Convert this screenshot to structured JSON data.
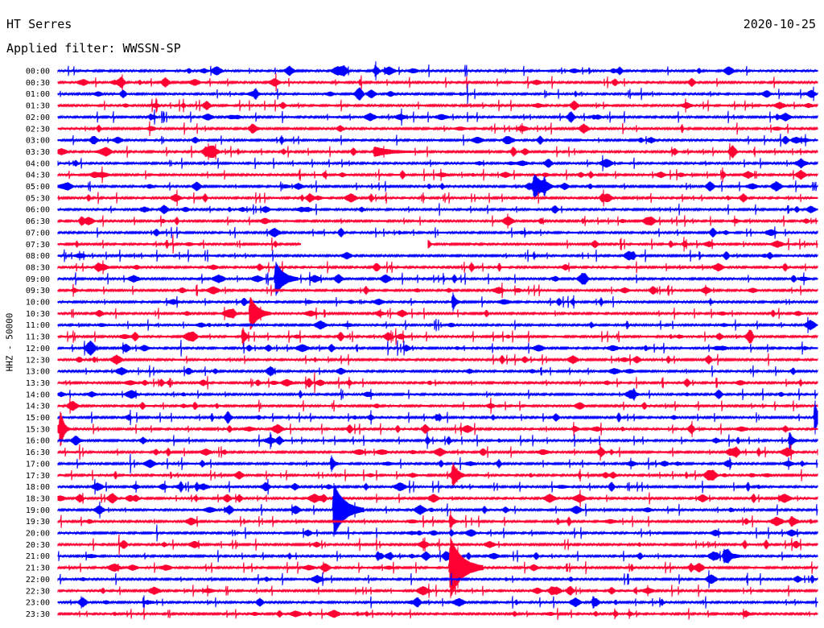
{
  "header": {
    "station": "HT Serres",
    "date": "2020-10-25",
    "filter": "Applied filter: WWSSN-SP"
  },
  "colors": {
    "even_row": "#0000ff",
    "odd_row": "#ff0033"
  },
  "chart_data": {
    "type": "line",
    "subtype": "helicorder",
    "ylabel": "HHZ - 50000",
    "row_labels": [
      "00:00",
      "00:30",
      "01:00",
      "01:30",
      "02:00",
      "02:30",
      "03:00",
      "03:30",
      "04:00",
      "04:30",
      "05:00",
      "05:30",
      "06:00",
      "06:30",
      "07:00",
      "07:30",
      "08:00",
      "08:30",
      "09:00",
      "09:30",
      "10:00",
      "10:30",
      "11:00",
      "11:30",
      "12:00",
      "12:30",
      "13:00",
      "13:30",
      "14:00",
      "14:30",
      "15:00",
      "15:30",
      "16:00",
      "16:30",
      "17:00",
      "17:30",
      "18:00",
      "18:30",
      "19:00",
      "19:30",
      "20:00",
      "20:30",
      "21:00",
      "21:30",
      "22:00",
      "22:30",
      "23:00",
      "23:30"
    ],
    "row_minutes": 30,
    "data_gaps": [
      {
        "row": "07:30",
        "start_minute": 9.6,
        "end_minute": 14.6
      }
    ],
    "events": [
      {
        "row": "03:30",
        "minute": 12.5,
        "amplitude": 0.4,
        "duration_min": 1.6
      },
      {
        "row": "05:00",
        "minute": 18.8,
        "amplitude": 0.8,
        "duration_min": 0.8
      },
      {
        "row": "09:00",
        "minute": 8.6,
        "amplitude": 1.5,
        "duration_min": 0.9
      },
      {
        "row": "10:00",
        "minute": 15.6,
        "amplitude": 0.8,
        "duration_min": 0.3
      },
      {
        "row": "10:30",
        "minute": 7.6,
        "amplitude": 1.5,
        "duration_min": 0.8
      },
      {
        "row": "11:30",
        "minute": 7.3,
        "amplitude": 0.8,
        "duration_min": 0.3
      },
      {
        "row": "15:00",
        "minute": 29.9,
        "amplitude": 1.5,
        "duration_min": 0.3
      },
      {
        "row": "15:30",
        "minute": 0.1,
        "amplitude": 1.0,
        "duration_min": 0.4
      },
      {
        "row": "16:00",
        "minute": 28.9,
        "amplitude": 0.8,
        "duration_min": 0.3
      },
      {
        "row": "17:00",
        "minute": 10.8,
        "amplitude": 0.7,
        "duration_min": 0.3
      },
      {
        "row": "17:30",
        "minute": 15.6,
        "amplitude": 0.8,
        "duration_min": 0.3
      },
      {
        "row": "19:00",
        "minute": 10.9,
        "amplitude": 2.3,
        "duration_min": 1.2
      },
      {
        "row": "19:30",
        "minute": 15.5,
        "amplitude": 0.7,
        "duration_min": 0.3
      },
      {
        "row": "21:30",
        "minute": 15.5,
        "amplitude": 2.7,
        "duration_min": 1.3
      },
      {
        "row": "21:00",
        "minute": 26.3,
        "amplitude": 0.6,
        "duration_min": 0.8
      }
    ]
  }
}
